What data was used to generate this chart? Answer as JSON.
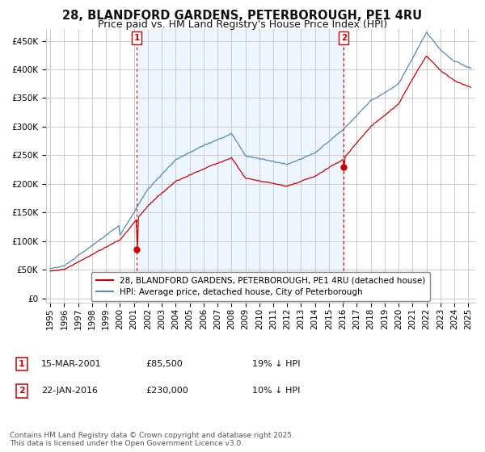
{
  "title": "28, BLANDFORD GARDENS, PETERBOROUGH, PE1 4RU",
  "subtitle": "Price paid vs. HM Land Registry's House Price Index (HPI)",
  "yticks": [
    0,
    50000,
    100000,
    150000,
    200000,
    250000,
    300000,
    350000,
    400000,
    450000
  ],
  "ylim": [
    -8000,
    470000
  ],
  "xlim_start": 1994.7,
  "xlim_end": 2025.5,
  "xticks": [
    1995,
    1996,
    1997,
    1998,
    1999,
    2000,
    2001,
    2002,
    2003,
    2004,
    2005,
    2006,
    2007,
    2008,
    2009,
    2010,
    2011,
    2012,
    2013,
    2014,
    2015,
    2016,
    2017,
    2018,
    2019,
    2020,
    2021,
    2022,
    2023,
    2024,
    2025
  ],
  "sale1_year": 2001.21,
  "sale1_price": 85500,
  "sale1_label": "1",
  "sale2_year": 2016.06,
  "sale2_price": 230000,
  "sale2_label": "2",
  "red_line_color": "#cc0000",
  "blue_line_color": "#5588bb",
  "blue_fill_color": "#ddeeff",
  "vline_color": "#cc0000",
  "grid_color": "#cccccc",
  "background_color": "#ffffff",
  "legend_box_color": "#ffffff",
  "legend_border_color": "#888888",
  "legend1_text": "28, BLANDFORD GARDENS, PETERBOROUGH, PE1 4RU (detached house)",
  "legend2_text": "HPI: Average price, detached house, City of Peterborough",
  "footer_text": "Contains HM Land Registry data © Crown copyright and database right 2025.\nThis data is licensed under the Open Government Licence v3.0.",
  "title_fontsize": 10.5,
  "subtitle_fontsize": 9,
  "tick_fontsize": 7.5,
  "legend_fontsize": 7.5,
  "annotation_fontsize": 8,
  "footer_fontsize": 6.5
}
